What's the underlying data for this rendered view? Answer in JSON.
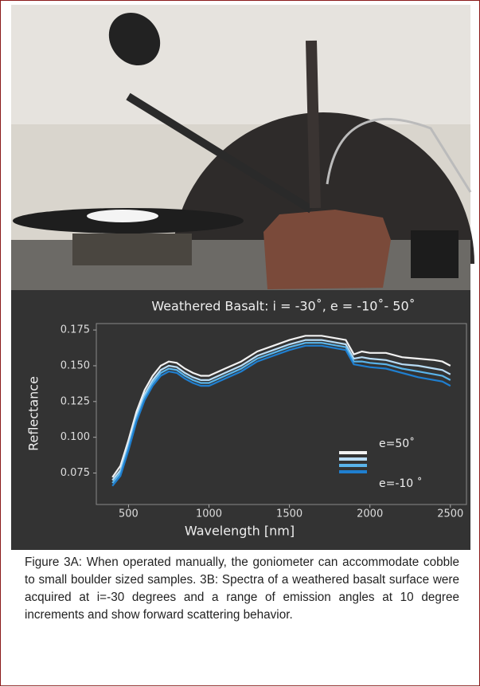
{
  "chart_data": {
    "type": "line",
    "title": "Weathered Basalt: i = -30˚, e = -10˚- 50˚",
    "x_label": "Wavelength [nm]",
    "y_label": "Reflectance",
    "x": [
      400,
      450,
      500,
      550,
      600,
      650,
      700,
      750,
      800,
      850,
      900,
      950,
      1000,
      1100,
      1200,
      1300,
      1400,
      1500,
      1600,
      1700,
      1800,
      1850,
      1900,
      1950,
      2000,
      2100,
      2200,
      2300,
      2400,
      2450,
      2500
    ],
    "series": [
      {
        "color": "#f2f2f2",
        "values": [
          0.072,
          0.08,
          0.098,
          0.118,
          0.133,
          0.143,
          0.15,
          0.153,
          0.152,
          0.148,
          0.145,
          0.143,
          0.143,
          0.148,
          0.153,
          0.16,
          0.164,
          0.168,
          0.171,
          0.171,
          0.169,
          0.168,
          0.158,
          0.16,
          0.159,
          0.159,
          0.156,
          0.155,
          0.154,
          0.153,
          0.15
        ]
      },
      {
        "color": "#b8dcf5",
        "values": [
          0.07,
          0.077,
          0.095,
          0.115,
          0.13,
          0.14,
          0.147,
          0.15,
          0.149,
          0.145,
          0.142,
          0.14,
          0.14,
          0.145,
          0.15,
          0.157,
          0.161,
          0.165,
          0.168,
          0.168,
          0.166,
          0.165,
          0.155,
          0.156,
          0.155,
          0.154,
          0.151,
          0.15,
          0.148,
          0.147,
          0.144
        ]
      },
      {
        "color": "#5ab4ea",
        "values": [
          0.068,
          0.075,
          0.093,
          0.113,
          0.128,
          0.138,
          0.145,
          0.148,
          0.147,
          0.143,
          0.14,
          0.138,
          0.138,
          0.143,
          0.148,
          0.155,
          0.159,
          0.163,
          0.166,
          0.166,
          0.164,
          0.163,
          0.153,
          0.153,
          0.152,
          0.151,
          0.148,
          0.146,
          0.144,
          0.143,
          0.14
        ]
      },
      {
        "color": "#1f7fd0",
        "values": [
          0.066,
          0.073,
          0.091,
          0.111,
          0.126,
          0.136,
          0.143,
          0.146,
          0.145,
          0.141,
          0.138,
          0.136,
          0.136,
          0.141,
          0.146,
          0.153,
          0.157,
          0.161,
          0.164,
          0.164,
          0.162,
          0.161,
          0.151,
          0.15,
          0.149,
          0.148,
          0.145,
          0.142,
          0.14,
          0.139,
          0.136
        ]
      }
    ],
    "legend_labels": [
      "e=50˚",
      "e=-10 ˚"
    ],
    "xlim": [
      300,
      2600
    ],
    "ylim": [
      0.053,
      0.1795
    ],
    "xticks": [
      500,
      1000,
      1500,
      2000,
      2500
    ],
    "yticks": [
      0.075,
      {
        "value": 0.1,
        "label": "0.100"
      },
      0.125,
      {
        "value": 0.15,
        "label": "0.150"
      },
      0.175
    ]
  },
  "caption": "Figure 3A: When operated manually, the goniometer can accommodate cobble to small boulder sized samples. 3B: Spectra of a weathered basalt surface were acquired at i=-30 degrees and a range of emission angles at 10 degree increments and show forward scattering behavior."
}
